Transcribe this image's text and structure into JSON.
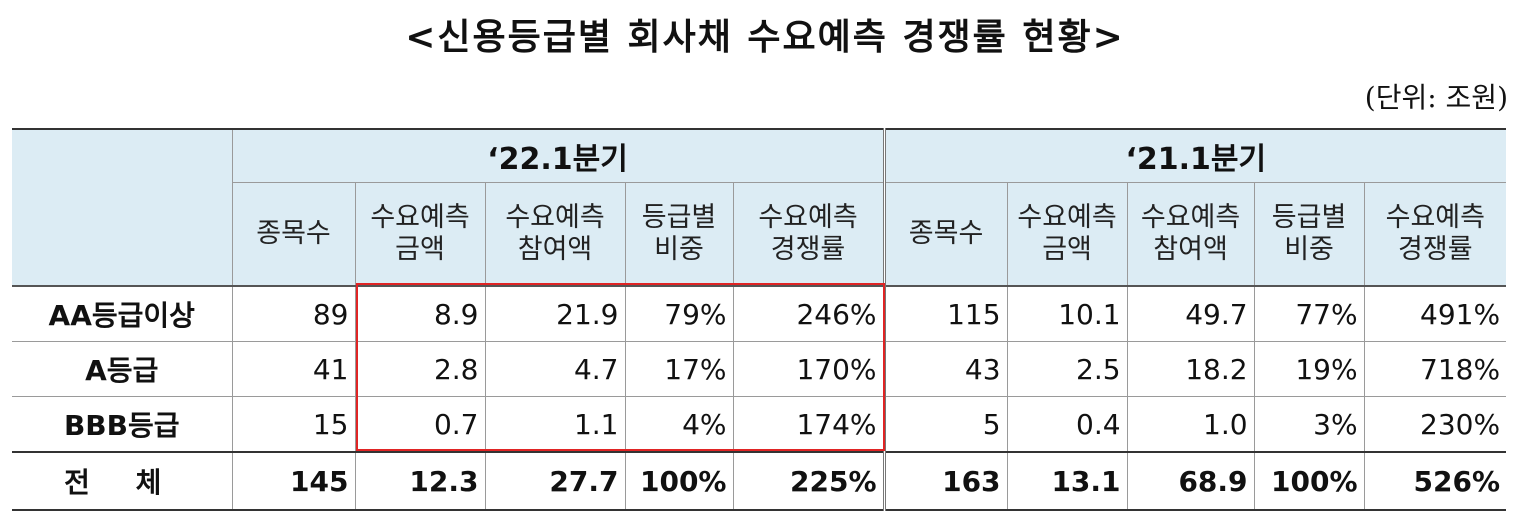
{
  "title": "<신용등급별 회사채 수요예측 경쟁률 현황>",
  "unit": "(단위: 조원)",
  "periods": [
    "‘22.1분기",
    "‘21.1분기"
  ],
  "columns": [
    [
      "종목수"
    ],
    [
      "수요예측",
      "금액"
    ],
    [
      "수요예측",
      "참여액"
    ],
    [
      "등급별",
      "비중"
    ],
    [
      "수요예측",
      "경쟁률"
    ]
  ],
  "rows": [
    {
      "label": "AA등급이상",
      "q22": [
        "89",
        "8.9",
        "21.9",
        "79%",
        "246%"
      ],
      "q21": [
        "115",
        "10.1",
        "49.7",
        "77%",
        "491%"
      ]
    },
    {
      "label": "A등급",
      "q22": [
        "41",
        "2.8",
        "4.7",
        "17%",
        "170%"
      ],
      "q21": [
        "43",
        "2.5",
        "18.2",
        "19%",
        "718%"
      ]
    },
    {
      "label": "BBB등급",
      "q22": [
        "15",
        "0.7",
        "1.1",
        "4%",
        "174%"
      ],
      "q21": [
        "5",
        "0.4",
        "1.0",
        "3%",
        "230%"
      ]
    },
    {
      "label": "전 체",
      "q22": [
        "145",
        "12.3",
        "27.7",
        "100%",
        "225%"
      ],
      "q21": [
        "163",
        "13.1",
        "68.9",
        "100%",
        "526%"
      ]
    }
  ],
  "colors": {
    "header_bg": "#dcecf4",
    "highlight": "#e02424"
  }
}
